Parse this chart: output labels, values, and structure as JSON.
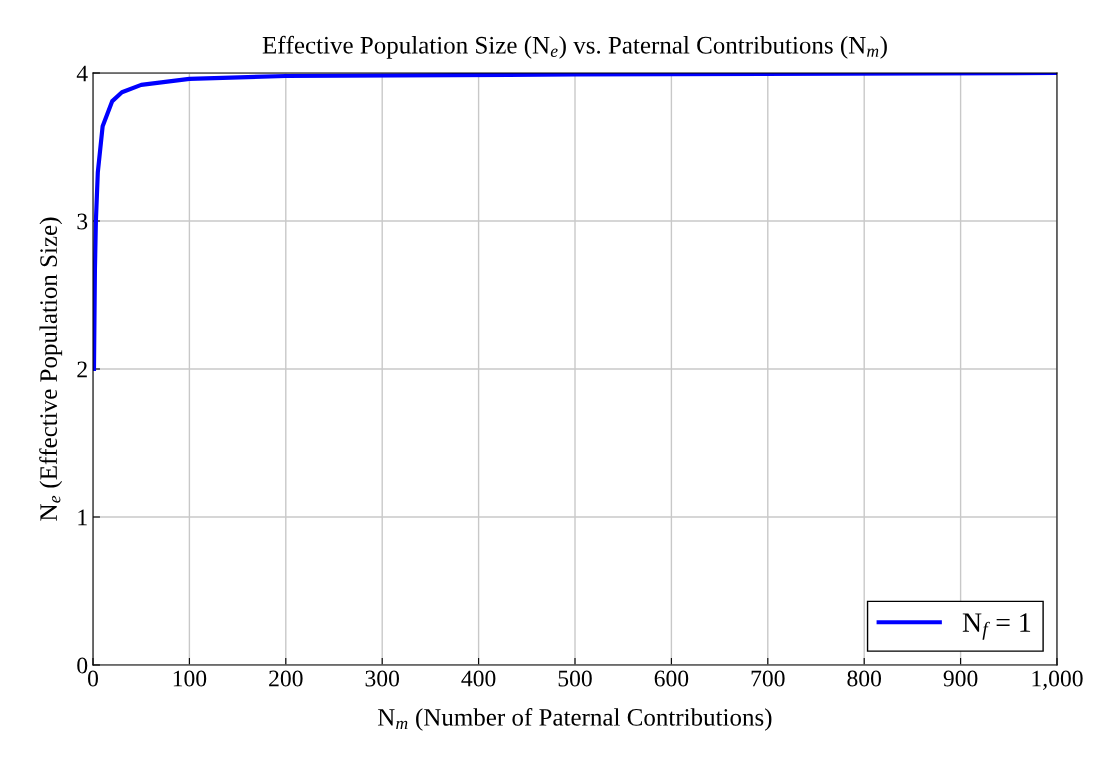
{
  "chart_data": {
    "type": "line",
    "title": "Effective Population Size (N$_{e}$) vs. Paternal Contributions (N$_{m}$)",
    "xlabel": "N$_{m}$ (Number of Paternal Contributions)",
    "ylabel": "N$_{e}$ (Effective Population Size)",
    "x": [
      1,
      2,
      3,
      5,
      10,
      20,
      30,
      50,
      100,
      200,
      500,
      1000
    ],
    "series": [
      {
        "name": "N$_{f}$ = 1",
        "color": "#0000ff",
        "values": [
          2.0,
          2.67,
          3.0,
          3.33,
          3.64,
          3.81,
          3.87,
          3.92,
          3.96,
          3.98,
          3.99,
          4.0
        ]
      }
    ],
    "xlim": [
      0,
      1000
    ],
    "ylim": [
      0,
      4
    ],
    "xticks": [
      0,
      100,
      200,
      300,
      400,
      500,
      600,
      700,
      800,
      900,
      {
        "value": 1000,
        "label": "1,000"
      }
    ],
    "yticks": [
      0,
      1,
      2,
      3,
      4
    ],
    "grid": true,
    "legend": "lower right",
    "marker": "none",
    "line_style": "solid"
  }
}
